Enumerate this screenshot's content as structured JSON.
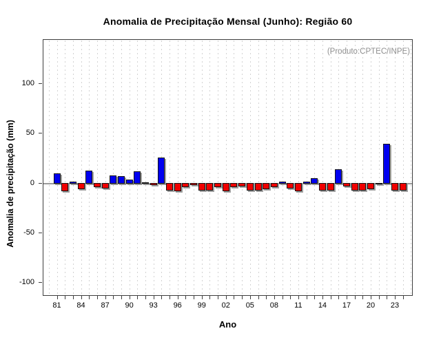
{
  "chart_data": {
    "type": "bar",
    "title": "Anomalia de Precipitação Mensal (Junho): Região 60",
    "xlabel": "Ano",
    "ylabel": "Anomalia de precipitação (mm)",
    "annotation": "(Produto:CPTEC/INPE)",
    "categories": [
      1981,
      1982,
      1983,
      1984,
      1985,
      1986,
      1987,
      1988,
      1989,
      1990,
      1991,
      1992,
      1993,
      1994,
      1995,
      1996,
      1997,
      1998,
      1999,
      2000,
      2001,
      2002,
      2003,
      2004,
      2005,
      2006,
      2007,
      2008,
      2009,
      2010,
      2011,
      2012,
      2013,
      2014,
      2015,
      2016,
      2017,
      2018,
      2019,
      2020,
      2021,
      2022,
      2023,
      2024
    ],
    "values": [
      10,
      -8,
      2,
      -6,
      13,
      -4,
      -5,
      8,
      7,
      3.5,
      12,
      1,
      -2,
      26,
      -7,
      -8,
      -4,
      -2,
      -7,
      -7,
      -4,
      -8,
      -4,
      -3,
      -7.5,
      -7,
      -6,
      -4,
      2,
      -5,
      -8,
      2,
      5,
      -7.5,
      -7.5,
      14,
      -3,
      -7,
      -7,
      -6,
      -0.5,
      40,
      -7,
      -7
    ],
    "x_tick_labels": [
      "81",
      "84",
      "87",
      "90",
      "93",
      "96",
      "99",
      "02",
      "05",
      "08",
      "11",
      "14",
      "17",
      "20",
      "23"
    ],
    "x_tick_years": [
      1981,
      1984,
      1987,
      1990,
      1993,
      1996,
      1999,
      2002,
      2005,
      2008,
      2011,
      2014,
      2017,
      2020,
      2023
    ],
    "y_tick_labels": [
      "100",
      "50",
      "0",
      "-50",
      "-100"
    ],
    "y_tick_values": [
      100,
      50,
      0,
      -50,
      -100
    ],
    "ylim": [
      -114,
      145
    ],
    "grid": "vertical-dashed-per-year",
    "legend": "none",
    "colors": {
      "positive": "#0000f0",
      "negative": "#f00000",
      "zero_line": "#9a9a9a",
      "annotation": "#909090"
    }
  }
}
